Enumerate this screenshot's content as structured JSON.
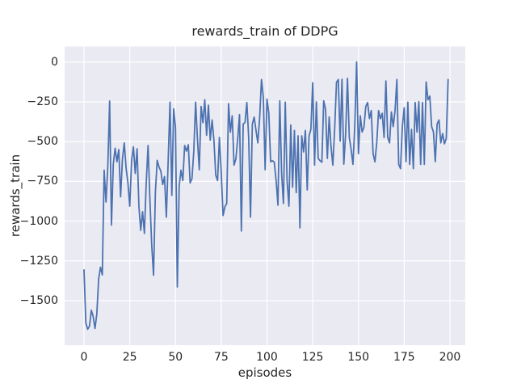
{
  "figure": {
    "title": "rewards_train of DDPG",
    "xlabel": "episodes",
    "ylabel": "rewards_train"
  },
  "chart_data": {
    "type": "line",
    "title": "rewards_train of DDPG",
    "xlabel": "episodes",
    "ylabel": "rewards_train",
    "legend": "none",
    "grid": true,
    "x_ticks": [
      0,
      25,
      50,
      75,
      100,
      125,
      150,
      175,
      200
    ],
    "x_tick_labels": [
      "0",
      "25",
      "50",
      "75",
      "100",
      "125",
      "150",
      "175",
      "200"
    ],
    "y_ticks": [
      0,
      -250,
      -500,
      -750,
      -1000,
      -1250,
      -1500
    ],
    "y_tick_labels": [
      "0",
      "−250",
      "−500",
      "−750",
      "−1000",
      "−1250",
      "−1500"
    ],
    "xlim": [
      -10.6,
      208.4
    ],
    "ylim": [
      -1780,
      98
    ],
    "style": {
      "line_color": "#4C72B0",
      "axes_background": "#EAEAF2",
      "grid_color": "#FFFFFF",
      "text_color": "#262626",
      "figure_background": "#FFFFFF"
    },
    "episodes": [
      0,
      1,
      2,
      3,
      4,
      5,
      6,
      7,
      8,
      9,
      10,
      11,
      12,
      13,
      14,
      15,
      16,
      17,
      18,
      19,
      20,
      21,
      22,
      23,
      24,
      25,
      26,
      27,
      28,
      29,
      30,
      31,
      32,
      33,
      34,
      35,
      36,
      37,
      38,
      39,
      40,
      41,
      42,
      43,
      44,
      45,
      46,
      47,
      48,
      49,
      50,
      51,
      52,
      53,
      54,
      55,
      56,
      57,
      58,
      59,
      60,
      61,
      62,
      63,
      64,
      65,
      66,
      67,
      68,
      69,
      70,
      71,
      72,
      73,
      74,
      75,
      76,
      77,
      78,
      79,
      80,
      81,
      82,
      83,
      84,
      85,
      86,
      87,
      88,
      89,
      90,
      91,
      92,
      93,
      94,
      95,
      96,
      97,
      98,
      99,
      100,
      101,
      102,
      103,
      104,
      105,
      106,
      107,
      108,
      109,
      110,
      111,
      112,
      113,
      114,
      115,
      116,
      117,
      118,
      119,
      120,
      121,
      122,
      123,
      124,
      125,
      126,
      127,
      128,
      129,
      130,
      131,
      132,
      133,
      134,
      135,
      136,
      137,
      138,
      139,
      140,
      141,
      142,
      143,
      144,
      145,
      146,
      147,
      148,
      149,
      150,
      151,
      152,
      153,
      154,
      155,
      156,
      157,
      158,
      159,
      160,
      161,
      162,
      163,
      164,
      165,
      166,
      167,
      168,
      169,
      170,
      171,
      172,
      173,
      174,
      175,
      176,
      177,
      178,
      179,
      180,
      181,
      182,
      183,
      184,
      185,
      186,
      187,
      188,
      189,
      190,
      191,
      192,
      193,
      194,
      195,
      196,
      197,
      198,
      199
    ],
    "values": [
      -1307,
      -1640,
      -1680,
      -1660,
      -1560,
      -1600,
      -1675,
      -1583,
      -1363,
      -1290,
      -1338,
      -680,
      -880,
      -660,
      -245,
      -1025,
      -643,
      -542,
      -627,
      -550,
      -847,
      -610,
      -508,
      -667,
      -760,
      -906,
      -620,
      -533,
      -700,
      -545,
      -906,
      -1058,
      -941,
      -1077,
      -760,
      -525,
      -860,
      -1150,
      -1340,
      -820,
      -618,
      -660,
      -686,
      -770,
      -720,
      -975,
      -620,
      -252,
      -838,
      -294,
      -413,
      -1414,
      -780,
      -680,
      -745,
      -525,
      -560,
      -520,
      -760,
      -733,
      -560,
      -252,
      -484,
      -677,
      -279,
      -381,
      -237,
      -460,
      -271,
      -491,
      -364,
      -491,
      -711,
      -745,
      -474,
      -694,
      -965,
      -910,
      -889,
      -262,
      -440,
      -338,
      -648,
      -610,
      -484,
      -330,
      -1062,
      -389,
      -380,
      -254,
      -473,
      -975,
      -390,
      -346,
      -430,
      -508,
      -350,
      -110,
      -220,
      -677,
      -233,
      -322,
      -627,
      -620,
      -630,
      -745,
      -900,
      -244,
      -700,
      -889,
      -252,
      -750,
      -906,
      -396,
      -787,
      -430,
      -821,
      -464,
      -1042,
      -464,
      -565,
      -430,
      -804,
      -464,
      -423,
      -130,
      -648,
      -250,
      -606,
      -620,
      -630,
      -244,
      -296,
      -606,
      -345,
      -531,
      -648,
      -420,
      -127,
      -110,
      -497,
      -108,
      -642,
      -450,
      -102,
      -473,
      -550,
      -643,
      -400,
      0,
      -576,
      -338,
      -440,
      -410,
      -280,
      -254,
      -355,
      -305,
      -576,
      -627,
      -508,
      -305,
      -356,
      -322,
      -474,
      -119,
      -474,
      -508,
      -314,
      -406,
      -305,
      -110,
      -643,
      -670,
      -406,
      -288,
      -626,
      -252,
      -643,
      -423,
      -670,
      -254,
      -440,
      -249,
      -643,
      -254,
      -643,
      -125,
      -237,
      -214,
      -406,
      -440,
      -626,
      -390,
      -364,
      -508,
      -450,
      -514,
      -480,
      -110
    ]
  }
}
